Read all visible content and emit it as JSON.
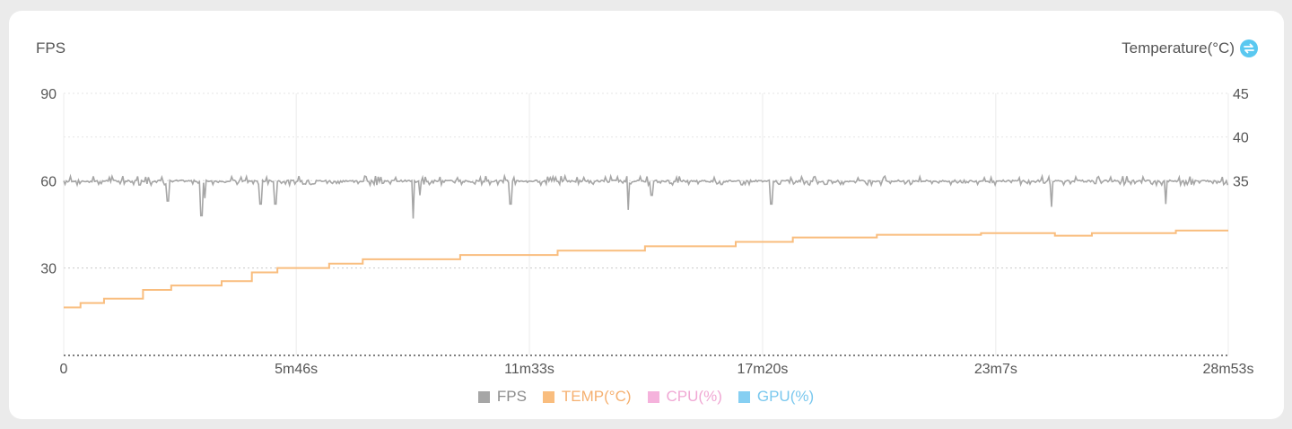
{
  "header": {
    "left_label": "FPS",
    "right_label": "Temperature(°C)",
    "right_icon": "swap-icon"
  },
  "colors": {
    "fps": "#a6a6a6",
    "temp": "#f9bd7e",
    "cpu": "#f5b2dc",
    "gpu": "#86cff2",
    "grid": "#d9d9d9",
    "axis_text": "#555555",
    "icon": "#5ac8f0"
  },
  "legend": [
    {
      "label": "FPS",
      "color": "#a6a6a6",
      "text_color": "#8c8c8c"
    },
    {
      "label": "TEMP(°C)",
      "color": "#f9bd7e",
      "text_color": "#f5b070"
    },
    {
      "label": "CPU(%)",
      "color": "#f5b2dc",
      "text_color": "#f0a8d4"
    },
    {
      "label": "GPU(%)",
      "color": "#86cff2",
      "text_color": "#7ac8ee"
    }
  ],
  "chart_data": {
    "type": "line",
    "x_ticks_seconds": [
      0,
      346,
      693,
      1040,
      1387,
      1733
    ],
    "x_tick_labels": [
      "0",
      "5m46s",
      "11m33s",
      "17m20s",
      "23m7s",
      "28m53s"
    ],
    "x_range_seconds": [
      0,
      1733
    ],
    "y_left": {
      "label": "FPS",
      "ticks": [
        90,
        60,
        30
      ],
      "range": [
        0,
        90
      ]
    },
    "y_right": {
      "label": "Temperature(°C)",
      "ticks": [
        45,
        40,
        35
      ],
      "range": [
        15,
        45
      ]
    },
    "grid": true,
    "legend_position": "bottom",
    "series": [
      {
        "name": "FPS",
        "axis": "left",
        "baseline": 60,
        "typical_range": [
          58,
          61
        ],
        "dips": [
          {
            "t": 155,
            "v": 53
          },
          {
            "t": 205,
            "v": 48
          },
          {
            "t": 210,
            "v": 54
          },
          {
            "t": 293,
            "v": 52
          },
          {
            "t": 315,
            "v": 52
          },
          {
            "t": 520,
            "v": 47
          },
          {
            "t": 530,
            "v": 55
          },
          {
            "t": 665,
            "v": 52
          },
          {
            "t": 840,
            "v": 50
          },
          {
            "t": 875,
            "v": 55
          },
          {
            "t": 1053,
            "v": 52
          },
          {
            "t": 1470,
            "v": 51
          },
          {
            "t": 1640,
            "v": 52
          }
        ]
      },
      {
        "name": "TEMP(°C)",
        "axis": "right",
        "points": [
          {
            "t": 0,
            "v": 20.5
          },
          {
            "t": 25,
            "v": 21
          },
          {
            "t": 60,
            "v": 21.5
          },
          {
            "t": 118,
            "v": 22.5
          },
          {
            "t": 160,
            "v": 23
          },
          {
            "t": 235,
            "v": 23.5
          },
          {
            "t": 280,
            "v": 24.5
          },
          {
            "t": 318,
            "v": 25
          },
          {
            "t": 395,
            "v": 25.5
          },
          {
            "t": 445,
            "v": 26
          },
          {
            "t": 590,
            "v": 26.5
          },
          {
            "t": 735,
            "v": 27
          },
          {
            "t": 865,
            "v": 27.5
          },
          {
            "t": 1000,
            "v": 28
          },
          {
            "t": 1085,
            "v": 28.5
          },
          {
            "t": 1210,
            "v": 28.8
          },
          {
            "t": 1365,
            "v": 29
          },
          {
            "t": 1475,
            "v": 28.7
          },
          {
            "t": 1530,
            "v": 29
          },
          {
            "t": 1655,
            "v": 29.3
          },
          {
            "t": 1733,
            "v": 29.3
          }
        ]
      },
      {
        "name": "CPU(%)",
        "axis": "left",
        "visible": false
      },
      {
        "name": "GPU(%)",
        "axis": "left",
        "visible": false
      }
    ]
  }
}
